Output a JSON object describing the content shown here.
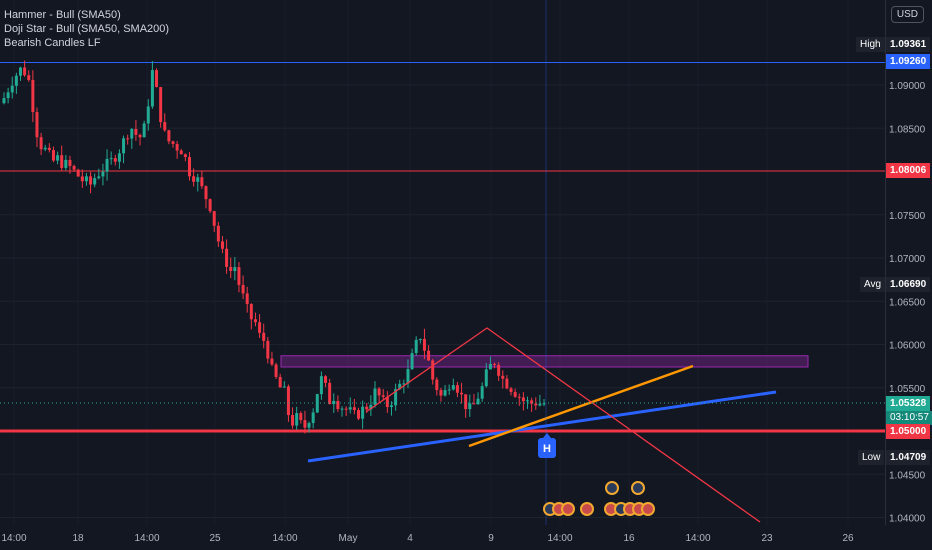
{
  "legend": {
    "items": [
      "Hammer - Bull (SMA50)",
      "Doji Star - Bull (SMA50, SMA200)",
      "Bearish Candles LF"
    ]
  },
  "currency_button": "USD",
  "price_labels": {
    "high": {
      "tag": "High",
      "value": "1.09361"
    },
    "blue_line": {
      "value": "1.09260",
      "color": "#2962ff"
    },
    "red_line_upper": {
      "value": "1.08006",
      "color": "#f23645"
    },
    "avg": {
      "tag": "Avg",
      "value": "1.06690"
    },
    "current": {
      "value": "1.05328",
      "countdown": "03:10:57",
      "color": "#22ab94"
    },
    "red_line_lower": {
      "value": "1.05000",
      "color": "#f23645"
    },
    "low": {
      "tag": "Low",
      "value": "1.04709"
    }
  },
  "event_marker": "H",
  "chart_data": {
    "type": "candlestick",
    "title": "",
    "y_axis": {
      "range": [
        1.039,
        1.097
      ],
      "ticks": [
        "1.09000",
        "1.08500",
        "1.07500",
        "1.07000",
        "1.06500",
        "1.06000",
        "1.05500",
        "1.05000",
        "1.04500",
        "1.04000"
      ],
      "tick_values": [
        1.09,
        1.085,
        1.075,
        1.07,
        1.065,
        1.06,
        1.055,
        1.05,
        1.045,
        1.04
      ]
    },
    "x_axis": {
      "ticks": [
        "14:00",
        "18",
        "14:00",
        "25",
        "14:00",
        "May",
        "4",
        "9",
        "14:00",
        "16",
        "14:00",
        "23",
        "26"
      ]
    },
    "colors": {
      "up": "#22ab94",
      "down": "#f23645"
    },
    "horizontal_lines": [
      {
        "price": 1.0926,
        "color": "#2962ff"
      },
      {
        "price": 1.08006,
        "color": "#f23645"
      },
      {
        "price": 1.05,
        "color": "#f23645"
      }
    ],
    "zone": {
      "price_top": 1.0587,
      "price_bottom": 1.0574,
      "color": "#9c27b0"
    },
    "close_series": [
      1.0885,
      1.0895,
      1.0905,
      1.0912,
      1.0918,
      1.0915,
      1.0905,
      1.0875,
      1.0845,
      1.083,
      1.0825,
      1.0818,
      1.0812,
      1.0815,
      1.081,
      1.0808,
      1.0805,
      1.08,
      1.0795,
      1.079,
      1.0788,
      1.0785,
      1.0793,
      1.0798,
      1.0803,
      1.0808,
      1.0812,
      1.0818,
      1.0825,
      1.0835,
      1.0845,
      1.085,
      1.0843,
      1.084,
      1.085,
      1.088,
      1.0915,
      1.0893,
      1.0863,
      1.0843,
      1.0835,
      1.0832,
      1.0828,
      1.0825,
      1.0815,
      1.08,
      1.0795,
      1.079,
      1.078,
      1.077,
      1.076,
      1.074,
      1.072,
      1.0705,
      1.0695,
      1.0685,
      1.069,
      1.067,
      1.0655,
      1.064,
      1.063,
      1.0625,
      1.061,
      1.0605,
      1.059,
      1.057,
      1.056,
      1.055,
      1.0545,
      1.052,
      1.051,
      1.0515,
      1.0508,
      1.0505,
      1.0515,
      1.0525,
      1.0545,
      1.056,
      1.055,
      1.0535,
      1.054,
      1.0532,
      1.0528,
      1.0525,
      1.0522,
      1.0518,
      1.052,
      1.0525,
      1.0528,
      1.0535,
      1.0545,
      1.054,
      1.0533,
      1.053,
      1.0535,
      1.0545,
      1.0553,
      1.056,
      1.0568,
      1.0585,
      1.06,
      1.061,
      1.0595,
      1.058,
      1.056,
      1.055,
      1.054,
      1.0545,
      1.0555,
      1.056,
      1.055,
      1.054,
      1.053,
      1.0525,
      1.053,
      1.054,
      1.055,
      1.0565,
      1.0575,
      1.058,
      1.057,
      1.056,
      1.0555,
      1.055,
      1.0545,
      1.054,
      1.0535,
      1.0533,
      1.0532,
      1.0533,
      1.0532,
      1.0532
    ]
  }
}
